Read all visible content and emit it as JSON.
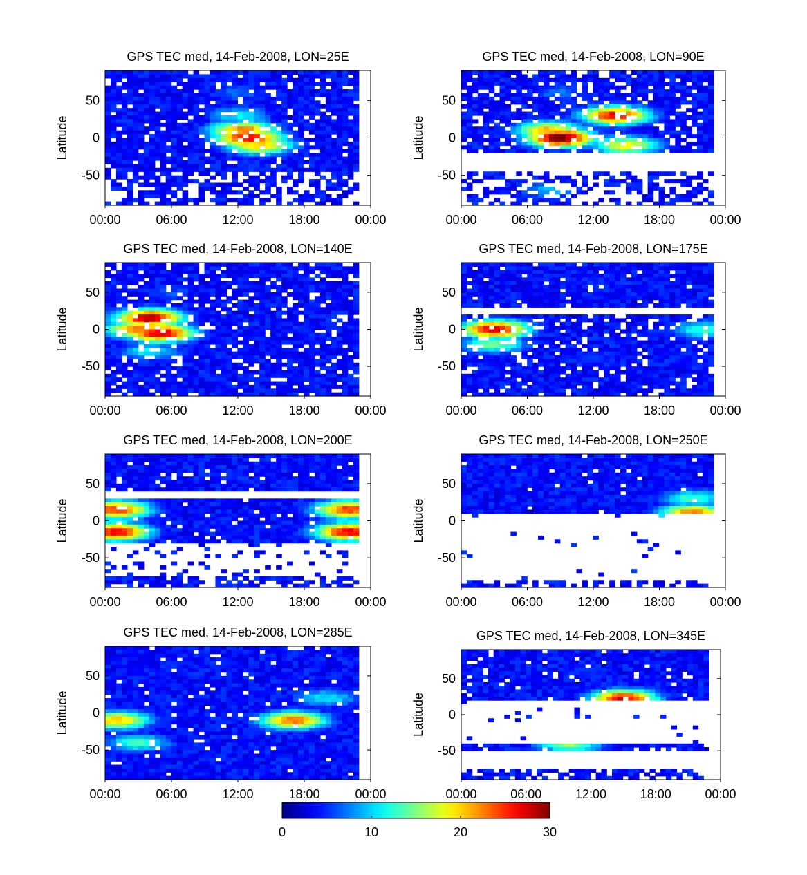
{
  "figure": {
    "colorbar": {
      "min": 0,
      "max": 30,
      "colormap": "jet",
      "ticks": [
        "0",
        "10",
        "20",
        "30"
      ]
    }
  },
  "chart_data": [
    {
      "type": "heatmap",
      "title": "GPS TEC med, 14-Feb-2008, LON=25E",
      "ylabel": "Latitude",
      "xticks": [
        "00:00",
        "06:00",
        "12:00",
        "18:00",
        "00:00"
      ],
      "yticks": [
        "50",
        "0",
        "-50"
      ],
      "xlim": [
        0,
        24
      ],
      "ylim": [
        -90,
        90
      ],
      "features": [
        {
          "lat": 0,
          "hour": 13,
          "tec": 26
        },
        {
          "lat": 10,
          "hour": 12.5,
          "tec": 22
        },
        {
          "lat": -10,
          "hour": 14,
          "tec": 20
        },
        {
          "lat": 30,
          "hour": 12,
          "tec": 10
        },
        {
          "lat": 60,
          "hour": 12,
          "tec": 6
        },
        {
          "lat": -40,
          "hour": 14,
          "tec": 4
        },
        {
          "lat": -80,
          "hour": 12,
          "tec": 2
        }
      ]
    },
    {
      "type": "heatmap",
      "title": "GPS TEC med, 14-Feb-2008, LON=90E",
      "ylabel": "Latitude",
      "xticks": [
        "00:00",
        "06:00",
        "12:00",
        "18:00",
        "00:00"
      ],
      "yticks": [
        "50",
        "0",
        "-50"
      ],
      "xlim": [
        0,
        24
      ],
      "ylim": [
        -90,
        90
      ],
      "features": [
        {
          "lat": 0,
          "hour": 9,
          "tec": 30
        },
        {
          "lat": 10,
          "hour": 8,
          "tec": 20
        },
        {
          "lat": 30,
          "hour": 14,
          "tec": 26
        },
        {
          "lat": -10,
          "hour": 15,
          "tec": 18
        },
        {
          "lat": 60,
          "hour": 9,
          "tec": 6
        },
        {
          "lat": -70,
          "hour": 8,
          "tec": 8
        }
      ]
    },
    {
      "type": "heatmap",
      "title": "GPS TEC med, 14-Feb-2008, LON=140E",
      "ylabel": "Latitude",
      "xticks": [
        "00:00",
        "06:00",
        "12:00",
        "18:00",
        "00:00"
      ],
      "yticks": [
        "50",
        "0",
        "-50"
      ],
      "xlim": [
        0,
        24
      ],
      "ylim": [
        -90,
        90
      ],
      "features": [
        {
          "lat": 15,
          "hour": 4,
          "tec": 28
        },
        {
          "lat": -5,
          "hour": 5,
          "tec": 27
        },
        {
          "lat": 0,
          "hour": 3,
          "tec": 22
        },
        {
          "lat": -30,
          "hour": 4,
          "tec": 10
        },
        {
          "lat": 50,
          "hour": 6,
          "tec": 5
        },
        {
          "lat": 0,
          "hour": 18,
          "tec": 3
        }
      ]
    },
    {
      "type": "heatmap",
      "title": "GPS TEC med, 14-Feb-2008, LON=175E",
      "ylabel": "Latitude",
      "xticks": [
        "00:00",
        "06:00",
        "12:00",
        "18:00",
        "00:00"
      ],
      "yticks": [
        "50",
        "0",
        "-50"
      ],
      "xlim": [
        0,
        24
      ],
      "ylim": [
        -90,
        90
      ],
      "features": [
        {
          "lat": 0,
          "hour": 3,
          "tec": 27
        },
        {
          "lat": -20,
          "hour": 3,
          "tec": 14
        },
        {
          "lat": 0,
          "hour": 22,
          "tec": 12
        },
        {
          "lat": 60,
          "hour": 12,
          "tec": 4
        },
        {
          "lat": -40,
          "hour": 12,
          "tec": 4
        }
      ]
    },
    {
      "type": "heatmap",
      "title": "GPS TEC med, 14-Feb-2008, LON=200E",
      "ylabel": "Latitude",
      "xticks": [
        "00:00",
        "06:00",
        "12:00",
        "18:00",
        "00:00"
      ],
      "yticks": [
        "50",
        "0",
        "-50"
      ],
      "xlim": [
        0,
        24
      ],
      "ylim": [
        -90,
        90
      ],
      "features": [
        {
          "lat": 15,
          "hour": 1,
          "tec": 24
        },
        {
          "lat": -15,
          "hour": 1,
          "tec": 26
        },
        {
          "lat": 15,
          "hour": 22,
          "tec": 24
        },
        {
          "lat": -15,
          "hour": 22,
          "tec": 26
        },
        {
          "lat": 60,
          "hour": 12,
          "tec": 4
        },
        {
          "lat": -80,
          "hour": 12,
          "tec": 3
        }
      ]
    },
    {
      "type": "heatmap",
      "title": "GPS TEC med, 14-Feb-2008, LON=250E",
      "ylabel": "Latitude",
      "xticks": [
        "00:00",
        "06:00",
        "12:00",
        "18:00",
        "00:00"
      ],
      "yticks": [
        "50",
        "0",
        "-50"
      ],
      "xlim": [
        0,
        24
      ],
      "ylim": [
        -90,
        90
      ],
      "features": [
        {
          "lat": 10,
          "hour": 21,
          "tec": 22
        },
        {
          "lat": 30,
          "hour": 21,
          "tec": 12
        },
        {
          "lat": 60,
          "hour": 10,
          "tec": 2
        },
        {
          "lat": -80,
          "hour": 12,
          "tec": 3
        }
      ]
    },
    {
      "type": "heatmap",
      "title": "GPS TEC med, 14-Feb-2008, LON=285E",
      "ylabel": "Latitude",
      "xticks": [
        "00:00",
        "06:00",
        "12:00",
        "18:00",
        "00:00"
      ],
      "yticks": [
        "50",
        "0",
        "-50"
      ],
      "xlim": [
        0,
        24
      ],
      "ylim": [
        -90,
        90
      ],
      "features": [
        {
          "lat": -10,
          "hour": 17,
          "tec": 22
        },
        {
          "lat": -10,
          "hour": 1,
          "tec": 20
        },
        {
          "lat": -40,
          "hour": 3,
          "tec": 12
        },
        {
          "lat": 20,
          "hour": 20,
          "tec": 10
        },
        {
          "lat": 60,
          "hour": 8,
          "tec": 3
        }
      ]
    },
    {
      "type": "heatmap",
      "title": "GPS TEC med, 14-Feb-2008, LON=345E",
      "ylabel": "Latitude",
      "xticks": [
        "00:00",
        "06:00",
        "12:00",
        "18:00",
        "00:00"
      ],
      "yticks": [
        "50",
        "0",
        "-50"
      ],
      "xlim": [
        0,
        24
      ],
      "ylim": [
        -90,
        90
      ],
      "features": [
        {
          "lat": 22,
          "hour": 15,
          "tec": 26
        },
        {
          "lat": -40,
          "hour": 10,
          "tec": 15
        },
        {
          "lat": 60,
          "hour": 12,
          "tec": 4
        },
        {
          "lat": -85,
          "hour": 12,
          "tec": 3
        }
      ]
    }
  ]
}
